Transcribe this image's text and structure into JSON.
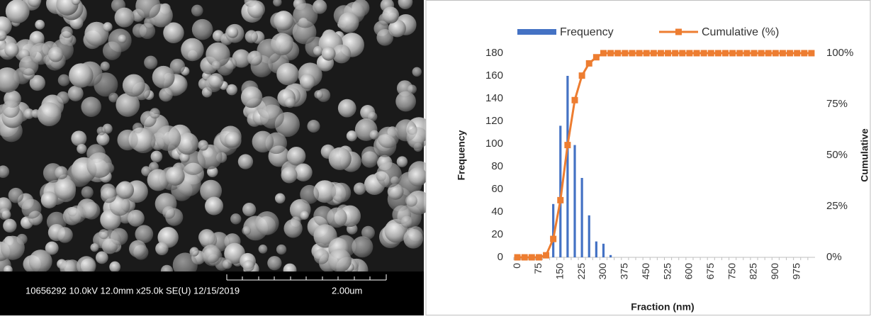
{
  "image_caption": {
    "info": "10656292 10.0kV 12.0mm x25.0k SE(U) 12/15/2019",
    "scale": "2.00um"
  },
  "chart_data": {
    "type": "bar_line",
    "x_label": "Fraction (nm)",
    "y_label": "Frequency",
    "y2_label": "Cumulative",
    "categories": [
      "0",
      null,
      null,
      "75",
      null,
      null,
      "150",
      null,
      null,
      "225",
      null,
      null,
      "300",
      null,
      null,
      "375",
      null,
      null,
      "450",
      null,
      null,
      "525",
      null,
      null,
      "600",
      null,
      null,
      "675",
      null,
      null,
      "750",
      null,
      null,
      "825",
      null,
      null,
      "900",
      null,
      null,
      "975",
      null,
      null
    ],
    "series": [
      {
        "name": "Frequency",
        "color": "#4472c4",
        "kind": "bar",
        "values": [
          0,
          0,
          0,
          0,
          0,
          47,
          116,
          160,
          99,
          70,
          37,
          14,
          12,
          2,
          0,
          0,
          0,
          0,
          0,
          0,
          0,
          0,
          0,
          0,
          0,
          0,
          0,
          0,
          0,
          0,
          0,
          0,
          0,
          0,
          0,
          0,
          0,
          0,
          0,
          0,
          0,
          0
        ]
      },
      {
        "name": "Cumulative (%)",
        "color": "#ed7d31",
        "kind": "line",
        "axis": "y2",
        "values": [
          0,
          0,
          0,
          0,
          1,
          9,
          28,
          55,
          77,
          89,
          95,
          98,
          100,
          100,
          100,
          100,
          100,
          100,
          100,
          100,
          100,
          100,
          100,
          100,
          100,
          100,
          100,
          100,
          100,
          100,
          100,
          100,
          100,
          100,
          100,
          100,
          100,
          100,
          100,
          100,
          100,
          100
        ]
      }
    ],
    "ylim": [
      0,
      180
    ],
    "yticks": [
      0,
      20,
      40,
      60,
      80,
      100,
      120,
      140,
      160,
      180
    ],
    "y2lim": [
      0,
      100
    ],
    "y2ticks": [
      {
        "value": 0,
        "label": "0%"
      },
      {
        "value": 25,
        "label": "25%"
      },
      {
        "value": 50,
        "label": "50%"
      },
      {
        "value": 75,
        "label": "75%"
      },
      {
        "value": 100,
        "label": "100%"
      }
    ],
    "legend": "top"
  }
}
